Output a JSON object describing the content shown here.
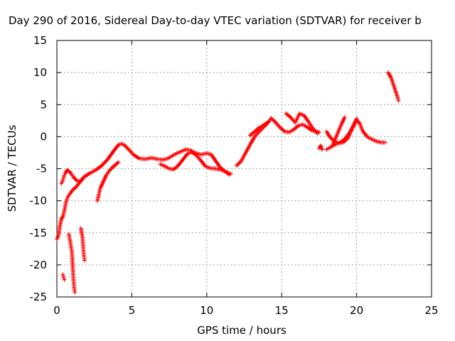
{
  "chart_data": {
    "type": "scatter",
    "title": "Day 290 of 2016, Sidereal Day-to-day VTEC variation (SDTVAR) for receiver b",
    "xlabel": "GPS time / hours",
    "ylabel": "SDTVAR / TECUs",
    "xlim": [
      0,
      25
    ],
    "ylim": [
      -25,
      15
    ],
    "x_ticks": [
      "0",
      "5",
      "10",
      "15",
      "20",
      "25"
    ],
    "y_ticks": [
      "-25",
      "-20",
      "-15",
      "-10",
      "-5",
      "0",
      "5",
      "10",
      "15"
    ],
    "grid": true,
    "marker": "plus",
    "color": "#ff0000",
    "series": [
      {
        "segments": [
          [
            [
              0.0,
              -16.0
            ],
            [
              0.1,
              -15.5
            ],
            [
              0.2,
              -14.0
            ],
            [
              0.3,
              -12.8
            ],
            [
              0.4,
              -12.5
            ],
            [
              0.5,
              -11.5
            ],
            [
              0.6,
              -10.3
            ],
            [
              0.7,
              -9.5
            ],
            [
              0.9,
              -8.8
            ],
            [
              1.1,
              -8.2
            ],
            [
              1.3,
              -7.8
            ],
            [
              1.5,
              -7.2
            ],
            [
              1.8,
              -6.3
            ],
            [
              2.2,
              -5.7
            ],
            [
              2.6,
              -5.2
            ],
            [
              3.0,
              -4.5
            ],
            [
              3.4,
              -3.5
            ],
            [
              3.8,
              -2.2
            ],
            [
              4.1,
              -1.3
            ],
            [
              4.3,
              -1.1
            ],
            [
              4.5,
              -1.3
            ],
            [
              4.8,
              -2.0
            ],
            [
              5.1,
              -2.8
            ],
            [
              5.5,
              -3.4
            ],
            [
              5.9,
              -3.5
            ],
            [
              6.3,
              -3.3
            ],
            [
              6.7,
              -3.5
            ],
            [
              7.1,
              -3.6
            ],
            [
              7.4,
              -3.4
            ],
            [
              7.7,
              -3.0
            ],
            [
              8.0,
              -2.6
            ],
            [
              8.3,
              -2.3
            ],
            [
              8.6,
              -2.0
            ],
            [
              8.9,
              -2.1
            ],
            [
              9.2,
              -2.5
            ],
            [
              9.6,
              -2.8
            ],
            [
              10.0,
              -2.6
            ],
            [
              10.3,
              -2.8
            ],
            [
              10.6,
              -3.8
            ],
            [
              10.9,
              -4.8
            ],
            [
              11.2,
              -5.4
            ],
            [
              11.5,
              -5.9
            ]
          ]
        ]
      },
      {
        "segments": [
          [
            [
              0.3,
              -7.3
            ],
            [
              0.4,
              -6.8
            ],
            [
              0.5,
              -6.0
            ],
            [
              0.6,
              -5.5
            ],
            [
              0.7,
              -5.2
            ],
            [
              0.9,
              -5.6
            ],
            [
              1.1,
              -6.3
            ],
            [
              1.3,
              -6.8
            ],
            [
              1.5,
              -7.0
            ],
            [
              1.7,
              -6.7
            ]
          ]
        ]
      },
      {
        "segments": [
          [
            [
              0.8,
              -15.2
            ],
            [
              0.9,
              -16.5
            ],
            [
              1.0,
              -18.0
            ],
            [
              1.05,
              -20.0
            ],
            [
              1.1,
              -22.0
            ],
            [
              1.15,
              -23.5
            ],
            [
              1.2,
              -24.3
            ]
          ],
          [
            [
              0.4,
              -21.5
            ],
            [
              0.5,
              -22.3
            ]
          ],
          [
            [
              1.6,
              -14.3
            ],
            [
              1.7,
              -15.5
            ],
            [
              1.75,
              -17.0
            ],
            [
              1.8,
              -18.5
            ],
            [
              1.85,
              -19.3
            ]
          ]
        ]
      },
      {
        "segments": [
          [
            [
              2.7,
              -10.0
            ],
            [
              2.8,
              -9.0
            ],
            [
              2.9,
              -8.0
            ],
            [
              3.1,
              -7.0
            ],
            [
              3.3,
              -6.0
            ],
            [
              3.5,
              -5.3
            ],
            [
              3.8,
              -4.6
            ],
            [
              4.1,
              -4.0
            ]
          ]
        ]
      },
      {
        "segments": [
          [
            [
              6.9,
              -4.3
            ],
            [
              7.2,
              -4.6
            ],
            [
              7.5,
              -5.0
            ],
            [
              7.8,
              -5.1
            ],
            [
              8.1,
              -4.5
            ],
            [
              8.4,
              -3.6
            ],
            [
              8.7,
              -2.7
            ],
            [
              9.0,
              -2.4
            ],
            [
              9.3,
              -2.9
            ],
            [
              9.6,
              -3.7
            ],
            [
              9.9,
              -4.6
            ],
            [
              10.2,
              -4.9
            ],
            [
              10.6,
              -5.0
            ],
            [
              11.0,
              -5.2
            ],
            [
              11.3,
              -5.5
            ],
            [
              11.6,
              -5.8
            ]
          ]
        ]
      },
      {
        "segments": [
          [
            [
              12.0,
              -4.5
            ],
            [
              12.3,
              -3.8
            ],
            [
              12.6,
              -2.5
            ],
            [
              12.9,
              -1.2
            ],
            [
              13.2,
              0.0
            ],
            [
              13.5,
              0.8
            ],
            [
              13.8,
              1.5
            ],
            [
              14.1,
              2.2
            ],
            [
              14.3,
              2.9
            ],
            [
              14.6,
              2.2
            ],
            [
              14.9,
              1.4
            ],
            [
              15.2,
              0.8
            ],
            [
              15.5,
              0.7
            ],
            [
              15.8,
              1.1
            ],
            [
              16.1,
              1.7
            ],
            [
              16.4,
              1.9
            ],
            [
              16.7,
              1.5
            ],
            [
              17.0,
              1.0
            ],
            [
              17.3,
              0.8
            ],
            [
              17.5,
              0.7
            ]
          ]
        ]
      },
      {
        "segments": [
          [
            [
              12.9,
              0.2
            ],
            [
              13.2,
              0.8
            ],
            [
              13.5,
              1.4
            ],
            [
              13.8,
              1.8
            ],
            [
              14.1,
              2.3
            ]
          ],
          [
            [
              15.3,
              3.6
            ],
            [
              15.6,
              3.0
            ],
            [
              15.9,
              2.2
            ],
            [
              16.2,
              3.6
            ],
            [
              16.5,
              3.3
            ],
            [
              16.8,
              2.3
            ],
            [
              17.1,
              1.2
            ],
            [
              17.4,
              0.5
            ]
          ]
        ]
      },
      {
        "segments": [
          [
            [
              17.5,
              -1.8
            ],
            [
              17.6,
              -1.4
            ],
            [
              17.7,
              -2.0
            ]
          ],
          [
            [
              18.0,
              0.8
            ],
            [
              18.2,
              0.0
            ],
            [
              18.5,
              -0.7
            ],
            [
              18.8,
              -1.0
            ],
            [
              19.1,
              -0.9
            ],
            [
              19.4,
              -0.3
            ],
            [
              19.7,
              1.2
            ],
            [
              20.0,
              2.6
            ],
            [
              20.2,
              2.1
            ],
            [
              20.4,
              0.9
            ],
            [
              20.7,
              0.0
            ],
            [
              21.0,
              -0.4
            ],
            [
              21.3,
              -0.7
            ],
            [
              21.6,
              -0.9
            ],
            [
              21.9,
              -0.9
            ]
          ]
        ]
      },
      {
        "segments": [
          [
            [
              18.0,
              -2.0
            ],
            [
              18.3,
              -1.6
            ],
            [
              18.6,
              -1.2
            ],
            [
              18.9,
              -0.9
            ],
            [
              19.2,
              -0.4
            ],
            [
              19.5,
              0.5
            ],
            [
              19.8,
              1.8
            ],
            [
              20.0,
              2.8
            ]
          ],
          [
            [
              18.4,
              -1.3
            ],
            [
              18.6,
              -0.2
            ],
            [
              18.8,
              0.9
            ],
            [
              19.0,
              2.0
            ],
            [
              19.2,
              3.0
            ]
          ]
        ]
      },
      {
        "segments": [
          [
            [
              22.1,
              10.0
            ],
            [
              22.3,
              9.2
            ],
            [
              22.5,
              7.8
            ],
            [
              22.7,
              6.4
            ],
            [
              22.8,
              5.6
            ]
          ]
        ]
      }
    ]
  }
}
